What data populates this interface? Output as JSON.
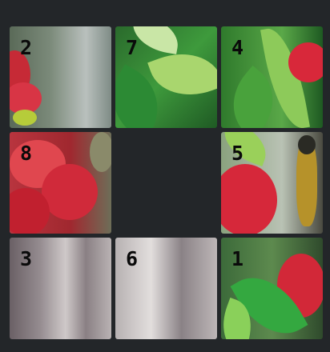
{
  "puzzle": {
    "tiles": [
      {
        "label": "2",
        "row": 0,
        "col": 0,
        "art": "t2"
      },
      {
        "label": "7",
        "row": 0,
        "col": 1,
        "art": "t7"
      },
      {
        "label": "4",
        "row": 0,
        "col": 2,
        "art": "t4"
      },
      {
        "label": "8",
        "row": 1,
        "col": 0,
        "art": "t8"
      },
      {
        "label": "5",
        "row": 1,
        "col": 2,
        "art": "t5"
      },
      {
        "label": "3",
        "row": 2,
        "col": 0,
        "art": "t3"
      },
      {
        "label": "6",
        "row": 2,
        "col": 1,
        "art": "t6"
      },
      {
        "label": "1",
        "row": 2,
        "col": 2,
        "art": "t1"
      }
    ],
    "empty": {
      "row": 1,
      "col": 1
    },
    "colors": {
      "background": "#232629",
      "number": "#0a0a0a",
      "flower_red": "#d8283a",
      "leaf_green": "#2f9a3a"
    }
  }
}
